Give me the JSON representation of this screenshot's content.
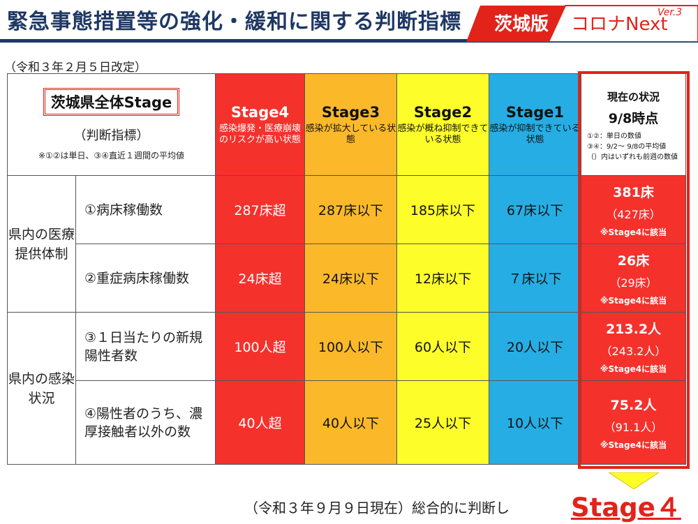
{
  "header": {
    "title": "緊急事態措置等の強化・緩和に関する判断指標",
    "badge_pref": "茨城版",
    "badge_rest": "コロナNext",
    "badge_ver": "Ver.3",
    "accent_color": "#e2231a",
    "title_color": "#1f3864"
  },
  "revised_note": "（令和３年２月５日改定）",
  "table": {
    "overall": {
      "label": "茨城県全体Stage",
      "sub": "（判断指標）",
      "note": "※①②は単日、③④直近１週間の平均値"
    },
    "stages": [
      {
        "name": "Stage4",
        "desc": "感染爆発・医療崩壊のリスクが高い状態",
        "color": "#f5312c"
      },
      {
        "name": "Stage3",
        "desc": "感染が拡大している状態",
        "color": "#fbb92a"
      },
      {
        "name": "Stage2",
        "desc": "感染が概ね抑制できている状態",
        "color": "#fdfd2a"
      },
      {
        "name": "Stage1",
        "desc": "感染が抑制できている状態",
        "color": "#26aee4"
      }
    ],
    "current_header": {
      "title": "現在の状況",
      "date": "9/8時点",
      "note1": "①②：単日の数値",
      "note2": "③④：9/2～ 9/8の平均値",
      "note3": "（）内はいずれも前週の数値"
    },
    "groups": [
      {
        "label": "県内の医療提供体制"
      },
      {
        "label": "県内の感染状況"
      }
    ],
    "rows": [
      {
        "indicator": "①病床稼働数",
        "s4": "287床超",
        "s3": "287床以下",
        "s2": "185床以下",
        "s1": "67床以下",
        "current": "381床",
        "previous": "（427床）",
        "judge": "※Stage4に該当"
      },
      {
        "indicator": "②重症病床稼働数",
        "s4": "24床超",
        "s3": "24床以下",
        "s2": "12床以下",
        "s1": "７床以下",
        "current": "26床",
        "previous": "（29床）",
        "judge": "※Stage4に該当"
      },
      {
        "indicator": "③１日当たりの新規陽性者数",
        "s4": "100人超",
        "s3": "100人以下",
        "s2": "60人以下",
        "s1": "20人以下",
        "current": "213.2人",
        "previous": "（243.2人）",
        "judge": "※Stage4に該当"
      },
      {
        "indicator": "④陽性者のうち、濃厚接触者以外の数",
        "s4": "40人超",
        "s3": "40人以下",
        "s2": "25人以下",
        "s1": "10人以下",
        "current": "75.2人",
        "previous": "（91.1人）",
        "judge": "※Stage4に該当"
      }
    ]
  },
  "conclusion": {
    "text": "（令和３年９月９日現在）総合的に判断し",
    "stage": "Stage４"
  }
}
